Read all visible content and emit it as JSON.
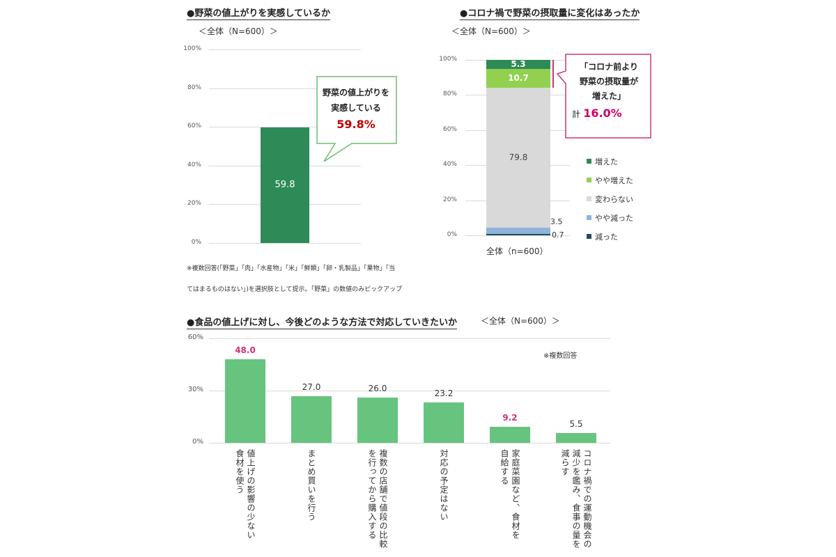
{
  "chart_data": [
    {
      "type": "bar",
      "title": "●野菜の値上がりを実感しているか",
      "subtitle": "＜全体（N=600）＞",
      "yticks": [
        "100%",
        "80%",
        "60%",
        "40%",
        "20%",
        "0%"
      ],
      "ylim": [
        0,
        100
      ],
      "values": [
        59.8
      ],
      "value_labels": [
        "59.8"
      ],
      "bar_color": "#2e8b57",
      "grid": true,
      "callout": {
        "line1": "野菜の値上がりを",
        "line2": "実感している",
        "value": "59.8%",
        "border_color": "#6abf69",
        "value_color": "#c00000"
      },
      "notes": [
        "※複数回答(「野菜」「肉」「水産物」「米」「鮮類」「卵・乳製品」「果物」「当",
        "てはまるものはない」)を選択肢として提示。「野菜」の数値のみピックアップ"
      ]
    },
    {
      "type": "bar",
      "title": "●コロナ禍で野菜の摂取量に変化はあったか",
      "subtitle": "＜全体（N=600）＞",
      "categories": [
        "全体（n=600）"
      ],
      "yticks": [
        "100%",
        "80%",
        "60%",
        "40%",
        "20%",
        "0%"
      ],
      "ylim": [
        0,
        100
      ],
      "stacked": true,
      "grid": true,
      "series": [
        {
          "name": "減った",
          "values": [
            0.7
          ],
          "label": "0.7",
          "color": "#1f4e5f"
        },
        {
          "name": "やや減った",
          "values": [
            3.5
          ],
          "label": "3.5",
          "color": "#8fb4d9"
        },
        {
          "name": "変わらない",
          "values": [
            79.8
          ],
          "label": "79.8",
          "color": "#d9d9d9"
        },
        {
          "name": "やや増えた",
          "values": [
            10.7
          ],
          "label": "10.7",
          "color": "#92d050"
        },
        {
          "name": "増えた",
          "values": [
            5.3
          ],
          "label": "5.3",
          "color": "#2e8b57"
        }
      ],
      "legend_order": [
        "増えた",
        "やや増えた",
        "変わらない",
        "やや減った",
        "減った"
      ],
      "legend_position": "right",
      "callout": {
        "line1": "「コロナ前より",
        "line2": "野菜の摂取量が",
        "line3": "増えた」",
        "total_prefix": "計",
        "total_value": "16.0%",
        "border_color": "#cc3377",
        "value_color": "#cc0066"
      }
    },
    {
      "type": "bar",
      "title": "●食品の値上げに対し、今後どのような方法で対応していきたいか",
      "subtitle": "＜全体（N=600）＞",
      "note": "※複数回答",
      "yticks": [
        "60%",
        "30%",
        "0%"
      ],
      "ylim": [
        0,
        60
      ],
      "grid": true,
      "bar_color": "#66c47f",
      "categories": [
        [
          "値上げの影響の少ない",
          "食材を使う"
        ],
        [
          "まとめ買いを行う"
        ],
        [
          "複数の店舗で値段の比較",
          "を行ってから購入する"
        ],
        [
          "対応の予定はない"
        ],
        [
          "家庭菜園など、食材を",
          "自給する"
        ],
        [
          "コロナ禍での運動機会の",
          "減少を鑑み、食事の量を",
          "減らす"
        ]
      ],
      "values": [
        48.0,
        27.0,
        26.0,
        23.2,
        9.2,
        5.5
      ],
      "value_labels": [
        "48.0",
        "27.0",
        "26.0",
        "23.2",
        "9.2",
        "5.5"
      ],
      "highlight_color": "#cc3377",
      "highlighted": [
        true,
        false,
        false,
        false,
        true,
        false
      ]
    }
  ]
}
